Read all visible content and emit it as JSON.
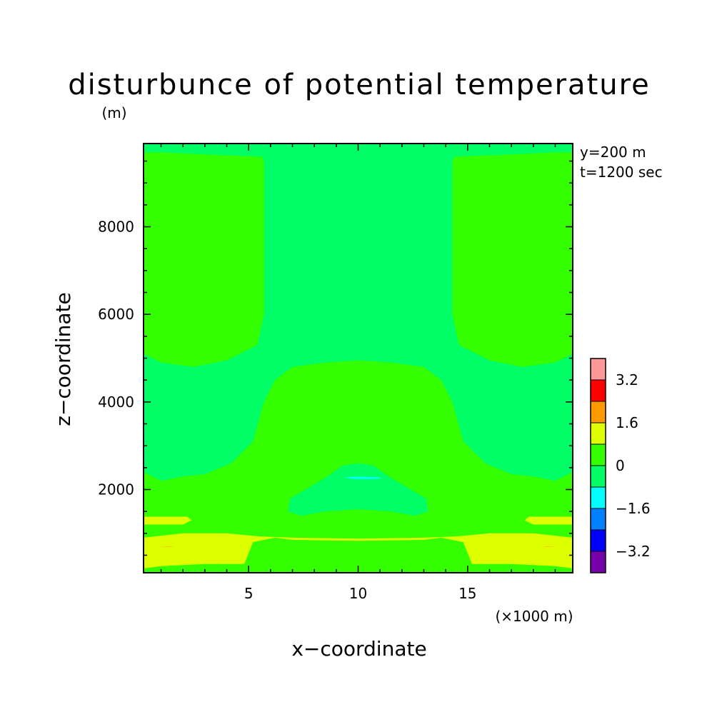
{
  "chart_data": {
    "type": "heatmap",
    "title": "disturbunce of potential temperature",
    "y_unit": "(m)",
    "x_unit": "(×1000 m)",
    "xlabel": "x−coordinate",
    "ylabel": "z−coordinate",
    "annotations": [
      "y=200 m",
      "t=1200 sec"
    ],
    "xlim": [
      0.2,
      19.8
    ],
    "ylim": [
      100,
      9900
    ],
    "x_ticks": [
      {
        "value": 5,
        "label": "5"
      },
      {
        "value": 10,
        "label": "10"
      },
      {
        "value": 15,
        "label": "15"
      }
    ],
    "y_ticks": [
      {
        "value": 2000,
        "label": "2000"
      },
      {
        "value": 4000,
        "label": "4000"
      },
      {
        "value": 6000,
        "label": "6000"
      },
      {
        "value": 8000,
        "label": "8000"
      }
    ],
    "colorbar": {
      "colors": [
        "#7700aa",
        "#0000ff",
        "#0080ff",
        "#00ffff",
        "#00ff66",
        "#33ff00",
        "#ddff00",
        "#ff9900",
        "#ff0000",
        "#ff9999"
      ],
      "boundaries": [
        -4.0,
        -3.2,
        -2.4,
        -1.6,
        -0.8,
        0,
        0.8,
        1.6,
        2.4,
        3.2,
        4.0
      ],
      "labels": [
        {
          "value": 3.2,
          "label": "3.2"
        },
        {
          "value": 1.6,
          "label": "1.6"
        },
        {
          "value": 0,
          "label": "0"
        },
        {
          "value": -1.6,
          "label": "−1.6"
        },
        {
          "value": -3.2,
          "label": "−3.2"
        }
      ]
    },
    "regions": [
      {
        "name": "base",
        "value_range": [
          -0.8,
          0
        ],
        "color": "#00ff66"
      },
      {
        "name": "upper-left",
        "value_range": [
          0,
          0.8
        ],
        "color": "#33ff00",
        "polygon": [
          [
            0.2,
            9900
          ],
          [
            0.2,
            9700
          ],
          [
            1,
            9700
          ],
          [
            3,
            9650
          ],
          [
            5.6,
            9600
          ],
          [
            5.7,
            9500
          ],
          [
            5.7,
            6000
          ],
          [
            5.4,
            5300
          ],
          [
            4,
            4950
          ],
          [
            2.5,
            4800
          ],
          [
            1,
            4900
          ],
          [
            0.2,
            5100
          ]
        ]
      },
      {
        "name": "upper-right",
        "value_range": [
          0,
          0.8
        ],
        "color": "#33ff00",
        "polygon": [
          [
            19.8,
            9900
          ],
          [
            19.8,
            9700
          ],
          [
            19,
            9700
          ],
          [
            17,
            9650
          ],
          [
            14.4,
            9600
          ],
          [
            14.3,
            9500
          ],
          [
            14.3,
            6000
          ],
          [
            14.6,
            5300
          ],
          [
            16,
            4950
          ],
          [
            17.5,
            4800
          ],
          [
            19,
            4900
          ],
          [
            19.8,
            5100
          ]
        ]
      },
      {
        "name": "lower-band",
        "value_range": [
          0,
          0.8
        ],
        "color": "#33ff00",
        "polygon": [
          [
            0.2,
            100
          ],
          [
            0.2,
            2400
          ],
          [
            1,
            2200
          ],
          [
            2,
            2300
          ],
          [
            3,
            2350
          ],
          [
            4.2,
            2600
          ],
          [
            5.2,
            3100
          ],
          [
            5.7,
            4000
          ],
          [
            6.2,
            4500
          ],
          [
            7,
            4800
          ],
          [
            8.5,
            4900
          ],
          [
            10,
            4950
          ],
          [
            11.5,
            4900
          ],
          [
            13,
            4800
          ],
          [
            13.8,
            4500
          ],
          [
            14.3,
            4000
          ],
          [
            14.8,
            3100
          ],
          [
            15.8,
            2600
          ],
          [
            17,
            2350
          ],
          [
            18,
            2300
          ],
          [
            19,
            2200
          ],
          [
            19.8,
            2400
          ],
          [
            19.8,
            100
          ]
        ]
      },
      {
        "name": "center-dome",
        "value_range": [
          -0.8,
          0
        ],
        "color": "#00ff66",
        "polygon": [
          [
            6.8,
            1500
          ],
          [
            6.9,
            1800
          ],
          [
            7.6,
            2000
          ],
          [
            8.6,
            2300
          ],
          [
            9.3,
            2550
          ],
          [
            10,
            2600
          ],
          [
            10.7,
            2550
          ],
          [
            11.4,
            2300
          ],
          [
            12.4,
            2000
          ],
          [
            13.1,
            1800
          ],
          [
            13.2,
            1500
          ],
          [
            12.6,
            1400
          ],
          [
            11.5,
            1500
          ],
          [
            10,
            1550
          ],
          [
            8.5,
            1500
          ],
          [
            7.4,
            1400
          ]
        ]
      },
      {
        "name": "center-dip",
        "value_range": [
          -1.6,
          -0.8
        ],
        "color": "#00ffff",
        "polygon": [
          [
            9.4,
            2270
          ],
          [
            9.6,
            2290
          ],
          [
            10.2,
            2290
          ],
          [
            10.9,
            2280
          ],
          [
            11.1,
            2250
          ],
          [
            10.5,
            2240
          ],
          [
            9.8,
            2240
          ]
        ]
      },
      {
        "name": "surface-warm",
        "value_range": [
          0.8,
          1.6
        ],
        "color": "#ddff00",
        "polygon": [
          [
            0.2,
            200
          ],
          [
            1,
            250
          ],
          [
            3,
            300
          ],
          [
            4.8,
            300
          ],
          [
            5.2,
            800
          ],
          [
            6.2,
            900
          ],
          [
            7,
            850
          ],
          [
            10,
            830
          ],
          [
            13,
            850
          ],
          [
            13.8,
            900
          ],
          [
            14.8,
            800
          ],
          [
            15.2,
            300
          ],
          [
            17,
            300
          ],
          [
            19,
            250
          ],
          [
            19.8,
            200
          ],
          [
            19.8,
            900
          ],
          [
            18,
            1000
          ],
          [
            16,
            1000
          ],
          [
            14.5,
            930
          ],
          [
            13,
            900
          ],
          [
            10,
            880
          ],
          [
            7,
            900
          ],
          [
            5.5,
            930
          ],
          [
            4,
            1000
          ],
          [
            2,
            1000
          ],
          [
            0.2,
            900
          ]
        ]
      },
      {
        "name": "left-strip",
        "value_range": [
          0.8,
          1.6
        ],
        "color": "#ddff00",
        "polygon": [
          [
            0.2,
            1200
          ],
          [
            2,
            1200
          ],
          [
            2.4,
            1300
          ],
          [
            2.2,
            1380
          ],
          [
            0.2,
            1380
          ]
        ]
      },
      {
        "name": "right-strip",
        "value_range": [
          0.8,
          1.6
        ],
        "color": "#ddff00",
        "polygon": [
          [
            19.8,
            1200
          ],
          [
            18,
            1200
          ],
          [
            17.6,
            1300
          ],
          [
            17.8,
            1380
          ],
          [
            19.8,
            1380
          ]
        ]
      },
      {
        "name": "left-warm-streak",
        "value_range": [
          1.6,
          2.4
        ],
        "color": "#ff9900",
        "polygon": [
          [
            0.9,
            700
          ],
          [
            1.4,
            705
          ],
          [
            1.6,
            700
          ],
          [
            1.4,
            695
          ]
        ]
      },
      {
        "name": "right-warm-streak",
        "value_range": [
          1.6,
          2.4
        ],
        "color": "#ff9900",
        "polygon": [
          [
            19.1,
            700
          ],
          [
            18.6,
            705
          ],
          [
            18.4,
            700
          ],
          [
            18.6,
            695
          ]
        ]
      }
    ]
  }
}
